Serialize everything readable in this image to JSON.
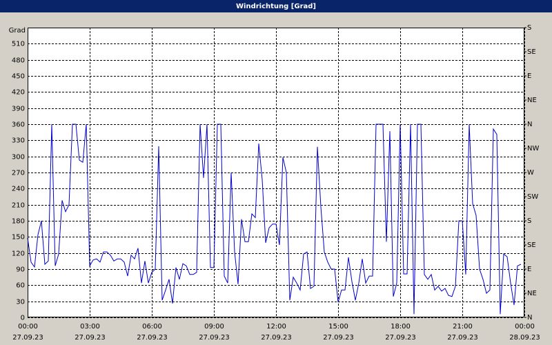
{
  "chart_data": {
    "type": "line",
    "title": "Windrichtung [Grad]",
    "y_label": "Grad",
    "x": [
      0,
      10,
      20,
      30,
      40,
      50,
      60,
      70,
      80,
      90,
      100,
      110,
      120,
      130,
      140,
      150,
      160,
      170,
      180,
      190,
      200,
      210,
      220,
      230,
      240,
      250,
      260,
      270,
      280,
      290,
      300,
      310,
      320,
      330,
      340,
      350,
      360,
      370,
      380,
      390,
      400,
      410,
      420,
      430,
      440,
      450,
      460,
      470,
      480,
      490,
      500,
      510,
      520,
      530,
      540,
      550,
      560,
      570,
      580,
      590,
      600,
      610,
      620,
      630,
      640,
      650,
      660,
      670,
      680,
      690,
      700,
      710,
      720,
      730,
      740,
      750,
      760,
      770,
      780,
      790,
      800,
      810,
      820,
      830,
      840,
      850,
      860,
      870,
      880,
      890,
      900,
      910,
      920,
      930,
      940,
      950,
      960,
      970,
      980,
      990,
      1000,
      1010,
      1020,
      1030,
      1040,
      1050,
      1060,
      1070,
      1080,
      1090,
      1100,
      1110,
      1120,
      1130,
      1140,
      1150,
      1160,
      1170,
      1180,
      1190,
      1200,
      1210,
      1220,
      1230,
      1240,
      1250,
      1260,
      1270,
      1280,
      1290,
      1300,
      1310,
      1320,
      1330,
      1340,
      1350,
      1360,
      1370,
      1380,
      1390,
      1400,
      1410,
      1420,
      1430
    ],
    "series": [
      {
        "name": "Windrichtung",
        "color": "#0000cc",
        "values": [
          148,
          103,
          94,
          154,
          180,
          99,
          105,
          360,
          96,
          118,
          218,
          197,
          210,
          360,
          360,
          293,
          289,
          360,
          96,
          107,
          109,
          103,
          122,
          122,
          116,
          105,
          109,
          109,
          103,
          77,
          116,
          109,
          129,
          64,
          105,
          64,
          84,
          90,
          319,
          32,
          51,
          71,
          26,
          93,
          71,
          100,
          96,
          80,
          80,
          84,
          360,
          260,
          360,
          93,
          93,
          360,
          360,
          77,
          64,
          270,
          122,
          62,
          183,
          141,
          141,
          193,
          186,
          324,
          257,
          139,
          167,
          174,
          174,
          135,
          298,
          270,
          32,
          75,
          64,
          51,
          118,
          122,
          54,
          58,
          318,
          206,
          122,
          103,
          90,
          90,
          28,
          51,
          51,
          112,
          67,
          32,
          64,
          109,
          64,
          77,
          77,
          360,
          360,
          360,
          141,
          347,
          39,
          64,
          360,
          81,
          81,
          360,
          6,
          360,
          360,
          80,
          71,
          80,
          51,
          58,
          49,
          54,
          41,
          39,
          58,
          180,
          180,
          80,
          360,
          212,
          190,
          90,
          71,
          45,
          51,
          351,
          341,
          6,
          118,
          113,
          64,
          23,
          96,
          99
        ]
      }
    ],
    "xlim": [
      0,
      1440
    ],
    "xticks": [
      {
        "value": 0,
        "label": "00:00",
        "date": "27.09.23"
      },
      {
        "value": 180,
        "label": "03:00",
        "date": "27.09.23"
      },
      {
        "value": 360,
        "label": "06:00",
        "date": "27.09.23"
      },
      {
        "value": 540,
        "label": "09:00",
        "date": "27.09.23"
      },
      {
        "value": 720,
        "label": "12:00",
        "date": "27.09.23"
      },
      {
        "value": 900,
        "label": "15:00",
        "date": "27.09.23"
      },
      {
        "value": 1080,
        "label": "18:00",
        "date": "27.09.23"
      },
      {
        "value": 1260,
        "label": "21:00",
        "date": "27.09.23"
      },
      {
        "value": 1440,
        "label": "00:00",
        "date": "28.09.23"
      }
    ],
    "ylim": [
      0,
      540
    ],
    "yticks": [
      0,
      30,
      60,
      90,
      120,
      150,
      180,
      210,
      240,
      270,
      300,
      330,
      360,
      390,
      420,
      450,
      480,
      510
    ],
    "y2lim": [
      0,
      540
    ],
    "y2ticks": [
      {
        "value": 0,
        "label": "N"
      },
      {
        "value": 45,
        "label": "NE"
      },
      {
        "value": 90,
        "label": "E"
      },
      {
        "value": 135,
        "label": "SE"
      },
      {
        "value": 180,
        "label": "S"
      },
      {
        "value": 225,
        "label": "SW"
      },
      {
        "value": 270,
        "label": "W"
      },
      {
        "value": 315,
        "label": "NW"
      },
      {
        "value": 360,
        "label": "N"
      },
      {
        "value": 405,
        "label": "NE"
      },
      {
        "value": 450,
        "label": "E"
      },
      {
        "value": 495,
        "label": "SE"
      },
      {
        "value": 540,
        "label": "S"
      }
    ],
    "grid": true
  }
}
